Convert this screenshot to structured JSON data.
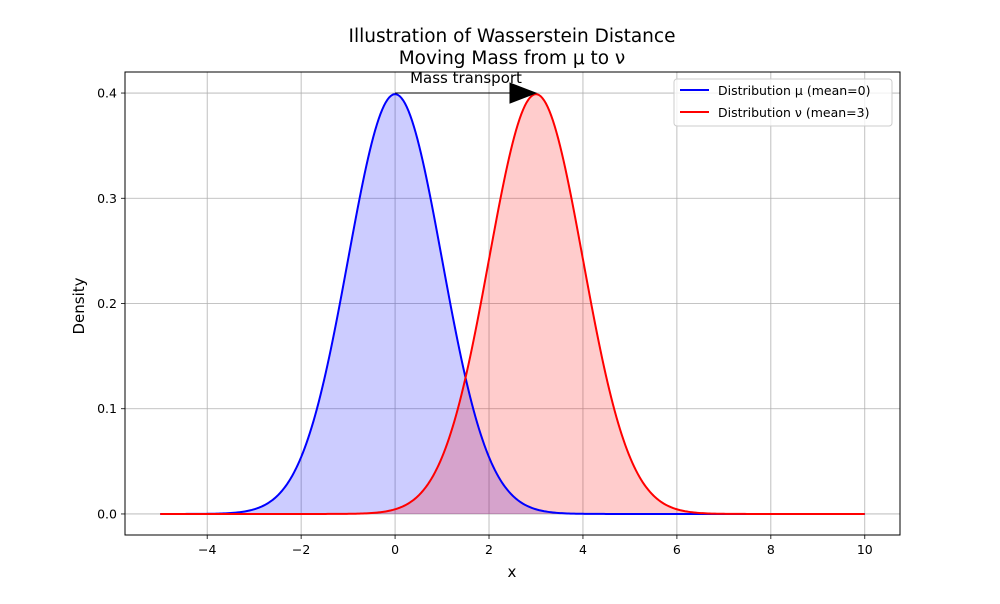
{
  "chart_data": {
    "type": "area",
    "title": "Illustration of Wasserstein Distance",
    "subtitle": "Moving Mass from μ to ν",
    "xlabel": "x",
    "ylabel": "Density",
    "xlim": [
      -5.75,
      10.75
    ],
    "ylim": [
      -0.02,
      0.42
    ],
    "xticks": [
      -4,
      -2,
      0,
      2,
      4,
      6,
      8,
      10
    ],
    "xtick_labels": [
      "−4",
      "−2",
      "0",
      "2",
      "4",
      "6",
      "8",
      "10"
    ],
    "yticks": [
      0.0,
      0.1,
      0.2,
      0.3,
      0.4
    ],
    "ytick_labels": [
      "0.0",
      "0.1",
      "0.2",
      "0.3",
      "0.4"
    ],
    "grid": true,
    "legend_position": "top-right",
    "x_range": [
      -5,
      10
    ],
    "series": [
      {
        "name": "Distribution μ (mean=0)",
        "distribution": "normal",
        "mean": 0,
        "std": 1,
        "color": "#0000ff",
        "fill": "#0000ff",
        "fill_alpha": 0.2
      },
      {
        "name": "Distribution ν (mean=3)",
        "distribution": "normal",
        "mean": 3,
        "std": 1,
        "color": "#ff0000",
        "fill": "#ff0000",
        "fill_alpha": 0.2
      }
    ],
    "annotation": {
      "text": "Mass transport",
      "arrow_from": [
        0,
        0.4
      ],
      "arrow_to": [
        3,
        0.4
      ]
    }
  }
}
